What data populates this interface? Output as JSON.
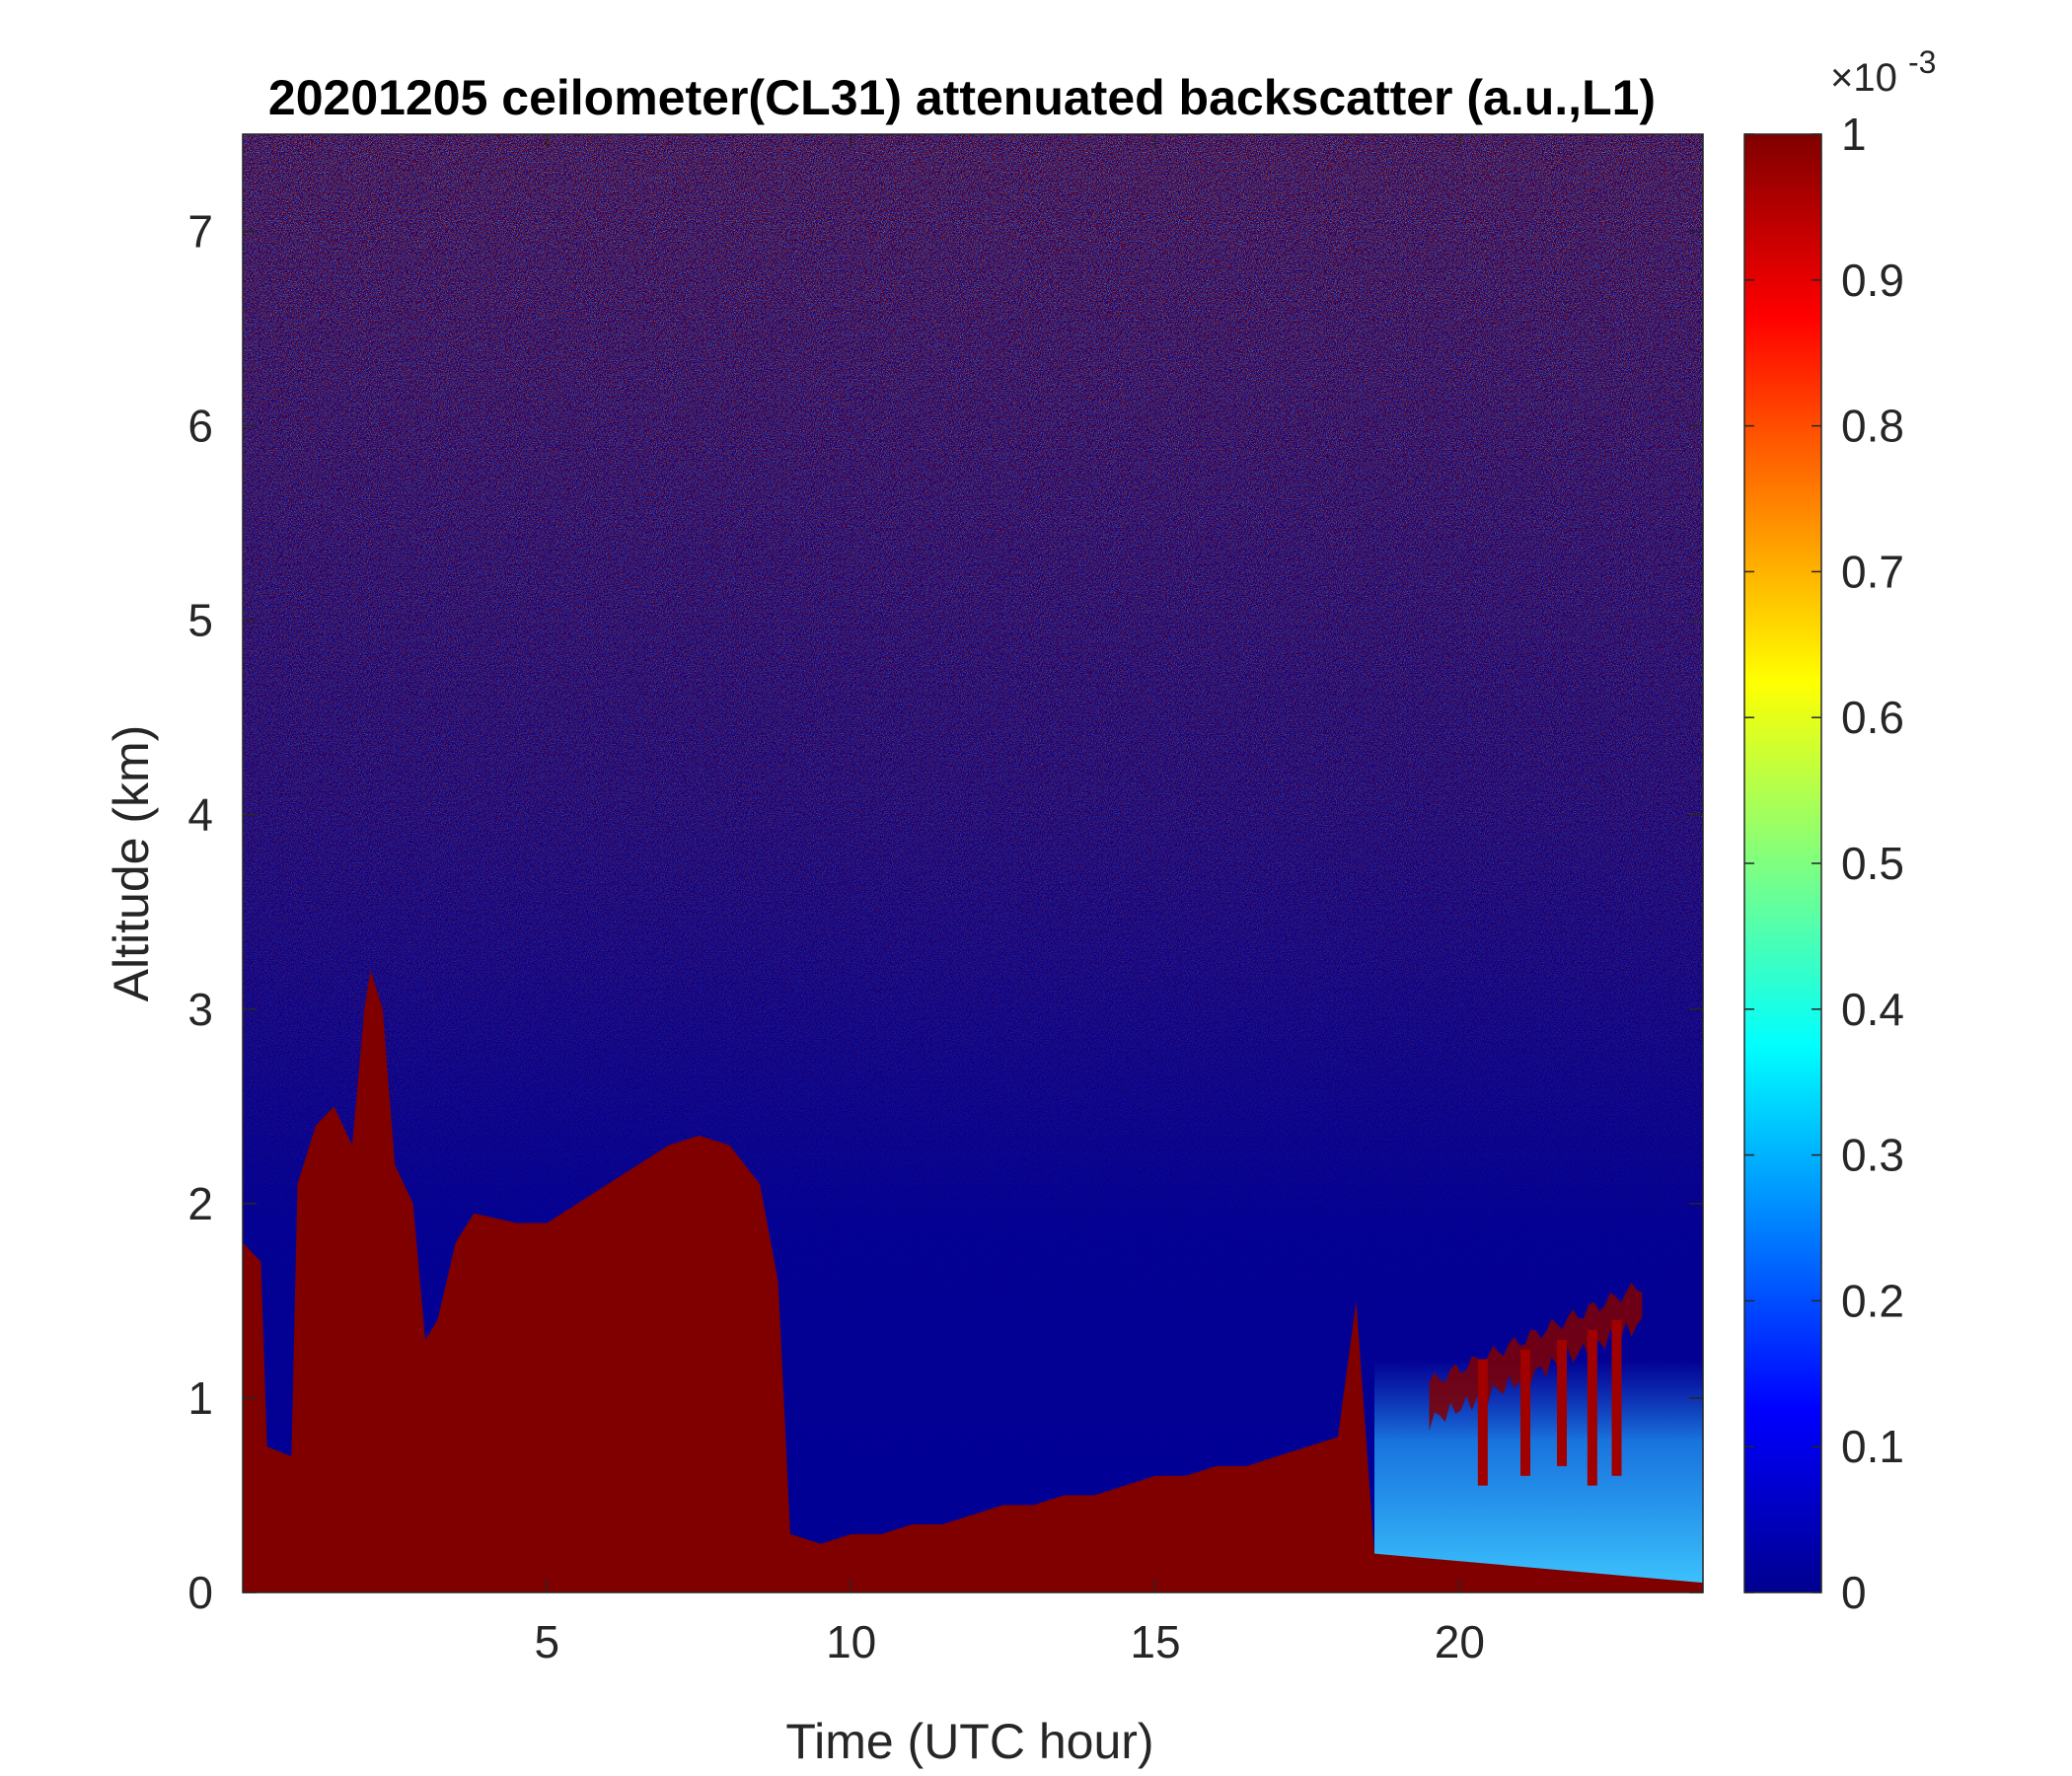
{
  "chart_data": {
    "type": "heatmap",
    "title": "20201205 ceilometer(CL31) attenuated backscatter (a.u.,L1)",
    "xlabel": "Time (UTC hour)",
    "ylabel": "Altitude (km)",
    "xlim": [
      0,
      24
    ],
    "ylim": [
      0,
      7.5
    ],
    "xticks": [
      5,
      10,
      15,
      20
    ],
    "yticks": [
      0,
      1,
      2,
      3,
      4,
      5,
      6,
      7
    ],
    "colorbar": {
      "colormap": "jet",
      "clim": [
        0,
        1
      ],
      "multiplier": "×10",
      "multiplier_exponent": "-3",
      "ticks": [
        0,
        0.1,
        0.2,
        0.3,
        0.4,
        0.5,
        0.6,
        0.7,
        0.8,
        0.9,
        1
      ]
    },
    "saturated_layer_top_km": [
      [
        0.0,
        1.8
      ],
      [
        0.3,
        1.7
      ],
      [
        0.4,
        0.75
      ],
      [
        0.8,
        0.7
      ],
      [
        0.9,
        2.1
      ],
      [
        1.2,
        2.4
      ],
      [
        1.5,
        2.5
      ],
      [
        1.8,
        2.3
      ],
      [
        2.0,
        3.0
      ],
      [
        2.1,
        3.2
      ],
      [
        2.3,
        3.0
      ],
      [
        2.5,
        2.2
      ],
      [
        2.8,
        2.0
      ],
      [
        3.0,
        1.3
      ],
      [
        3.2,
        1.4
      ],
      [
        3.5,
        1.8
      ],
      [
        3.8,
        1.95
      ],
      [
        4.5,
        1.9
      ],
      [
        5.0,
        1.9
      ],
      [
        5.5,
        2.0
      ],
      [
        6.0,
        2.1
      ],
      [
        6.5,
        2.2
      ],
      [
        7.0,
        2.3
      ],
      [
        7.5,
        2.35
      ],
      [
        8.0,
        2.3
      ],
      [
        8.5,
        2.1
      ],
      [
        8.8,
        1.6
      ],
      [
        9.0,
        0.3
      ],
      [
        9.5,
        0.25
      ],
      [
        10.0,
        0.3
      ],
      [
        10.5,
        0.3
      ],
      [
        11.0,
        0.35
      ],
      [
        11.5,
        0.35
      ],
      [
        12.0,
        0.4
      ],
      [
        12.5,
        0.45
      ],
      [
        13.0,
        0.45
      ],
      [
        13.5,
        0.5
      ],
      [
        14.0,
        0.5
      ],
      [
        14.5,
        0.55
      ],
      [
        15.0,
        0.6
      ],
      [
        15.5,
        0.6
      ],
      [
        16.0,
        0.65
      ],
      [
        16.5,
        0.65
      ],
      [
        17.0,
        0.7
      ],
      [
        17.5,
        0.75
      ],
      [
        18.0,
        0.8
      ],
      [
        18.3,
        1.5
      ],
      [
        18.6,
        0.2
      ],
      [
        24.0,
        0.05
      ]
    ],
    "weak_signal_band_km": {
      "time_range": [
        18.6,
        24.0
      ],
      "altitude_range": [
        0.0,
        1.2
      ],
      "value_approx": 0.3
    },
    "elevated_layer_km": {
      "time_range": [
        19.5,
        23.0
      ],
      "altitude_range": [
        1.0,
        1.5
      ],
      "value_approx": 1.0
    }
  }
}
